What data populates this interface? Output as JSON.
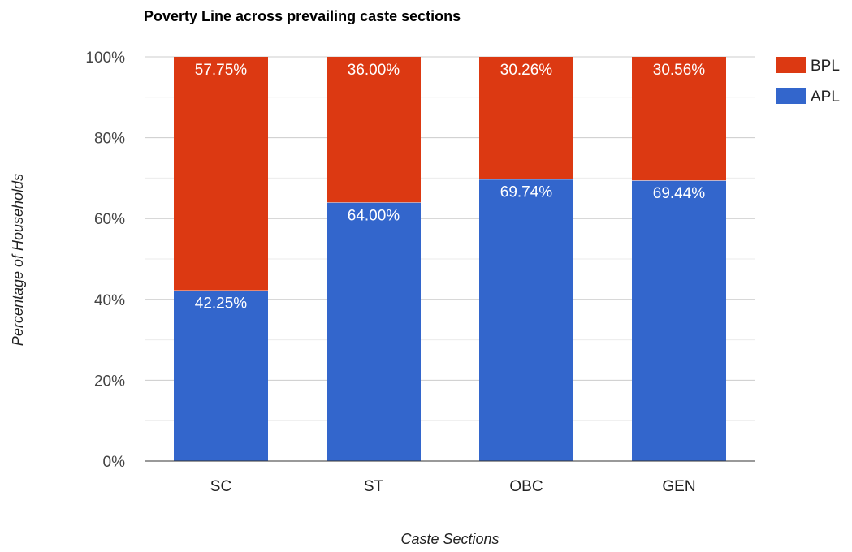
{
  "chart_data": {
    "type": "bar",
    "stacked": true,
    "title": "Poverty Line across prevailing caste sections",
    "xlabel": "Caste Sections",
    "ylabel": "Percentage of Households",
    "categories": [
      "SC",
      "ST",
      "OBC",
      "GEN"
    ],
    "series": [
      {
        "name": "APL",
        "color": "#3366cc",
        "values": [
          42.25,
          64.0,
          69.74,
          69.44
        ],
        "labels": [
          "42.25%",
          "64.00%",
          "69.74%",
          "69.44%"
        ]
      },
      {
        "name": "BPL",
        "color": "#dc3912",
        "values": [
          57.75,
          36.0,
          30.26,
          30.56
        ],
        "labels": [
          "57.75%",
          "36.00%",
          "30.26%",
          "30.56%"
        ]
      }
    ],
    "ylim": [
      0,
      100
    ],
    "yticks": [
      0,
      20,
      40,
      60,
      80,
      100
    ],
    "ytick_labels": [
      "0%",
      "20%",
      "40%",
      "60%",
      "80%",
      "100%"
    ],
    "minor_gridlines": [
      10,
      30,
      50,
      70,
      90
    ],
    "grid": true,
    "legend": {
      "position": "right",
      "entries": [
        {
          "name": "BPL",
          "color": "#dc3912"
        },
        {
          "name": "APL",
          "color": "#3366cc"
        }
      ]
    }
  }
}
